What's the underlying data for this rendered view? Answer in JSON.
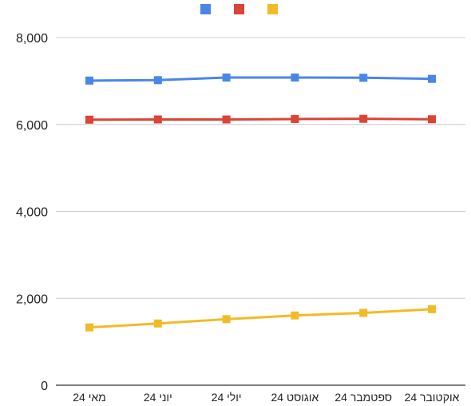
{
  "chart_data": {
    "type": "line",
    "categories": [
      "מאי 24",
      "יוני 24",
      "יולי 24",
      "אוגוסט 24",
      "ספטמבר 24",
      "אוקטובר 24"
    ],
    "series": [
      {
        "color": "#4a86e8",
        "values": [
          7010,
          7020,
          7080,
          7080,
          7075,
          7050
        ]
      },
      {
        "color": "#db4437",
        "values": [
          6110,
          6115,
          6115,
          6125,
          6130,
          6120
        ]
      },
      {
        "color": "#f1bb28",
        "values": [
          1330,
          1420,
          1520,
          1605,
          1665,
          1750
        ]
      }
    ],
    "y_ticks": [
      "0",
      "2,000",
      "4,000",
      "6,000",
      "8,000"
    ],
    "ylim": [
      0,
      8000
    ],
    "grid": true,
    "legend_position": "top"
  }
}
